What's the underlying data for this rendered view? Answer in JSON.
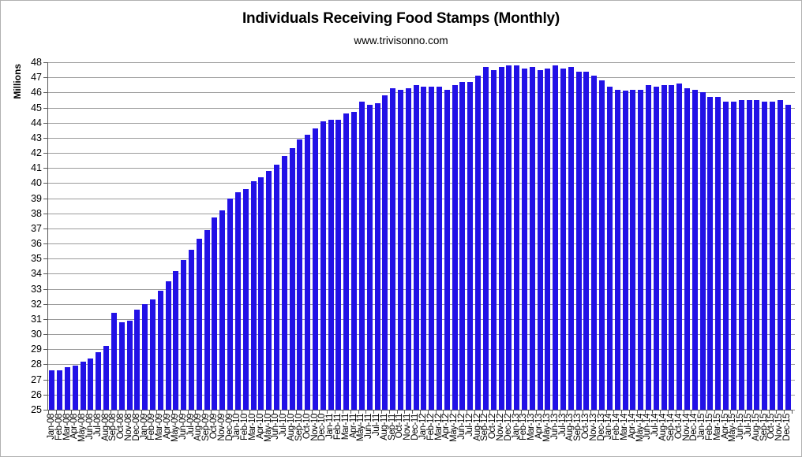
{
  "title": "Individuals Receiving Food Stamps (Monthly)",
  "subtitle": "www.trivisonno.com",
  "chart_data": {
    "type": "bar",
    "title": "Individuals Receiving Food Stamps (Monthly)",
    "subtitle": "www.trivisonno.com",
    "xlabel": "",
    "ylabel": "Millions",
    "ylim": [
      25,
      48
    ],
    "ytick_step": 1,
    "grid": true,
    "legend": false,
    "xtick_rotation": -90,
    "bar_color": "#2211e6",
    "gridline_color": "#9b9b9b",
    "axis_color": "#595959",
    "text_color": "#000000",
    "background_color": "#ffffff",
    "categories": [
      "Jan-08",
      "Feb-08",
      "Mar-08",
      "Apr-08",
      "May-08",
      "Jun-08",
      "Jul-08",
      "Aug-08",
      "Sep-08",
      "Oct-08",
      "Nov-08",
      "Dec-08",
      "Jan-09",
      "Feb-09",
      "Mar-09",
      "Apr-09",
      "May-09",
      "Jun-09",
      "Jul-09",
      "Aug-09",
      "Sep-09",
      "Oct-09",
      "Nov-09",
      "Dec-09",
      "Jan-10",
      "Feb-10",
      "Mar-10",
      "Apr-10",
      "May-10",
      "Jun-10",
      "Jul-10",
      "Aug-10",
      "Sep-10",
      "Oct-10",
      "Nov-10",
      "Dec-10",
      "Jan-11",
      "Feb-11",
      "Mar-11",
      "Apr-11",
      "May-11",
      "Jun-11",
      "Jul-11",
      "Aug-11",
      "Sep-11",
      "Oct-11",
      "Nov-11",
      "Dec-11",
      "Jan-12",
      "Feb-12",
      "Mar-12",
      "Apr-12",
      "May-12",
      "Jun-12",
      "Jul-12",
      "Aug-12",
      "Sep-12",
      "Oct-12",
      "Nov-12",
      "Dec-12",
      "Jan-13",
      "Feb-13",
      "Mar-13",
      "Apr-13",
      "May-13",
      "Jun-13",
      "Jul-13",
      "Aug-13",
      "Sep-13",
      "Oct-13",
      "Nov-13",
      "Dec-13",
      "Jan-14",
      "Feb-14",
      "Mar-14",
      "Apr-14",
      "May-14",
      "Jun-14",
      "Jul-14",
      "Aug-14",
      "Sep-14",
      "Oct-14",
      "Nov-14",
      "Dec-14",
      "Jan-15",
      "Feb-15",
      "Mar-15",
      "Apr-15",
      "May-15",
      "Jun-15",
      "Jul-15",
      "Aug-15",
      "Sep-15",
      "Oct-15",
      "Nov-15",
      "Dec-15"
    ],
    "values": [
      27.6,
      27.6,
      27.8,
      27.9,
      28.2,
      28.4,
      28.8,
      29.2,
      31.4,
      30.8,
      30.9,
      31.6,
      32.0,
      32.3,
      32.9,
      33.5,
      34.2,
      34.9,
      35.6,
      36.3,
      36.9,
      37.7,
      38.2,
      39.0,
      39.4,
      39.6,
      40.1,
      40.4,
      40.8,
      41.2,
      41.8,
      42.3,
      42.9,
      43.2,
      43.6,
      44.1,
      44.2,
      44.2,
      44.6,
      44.7,
      45.4,
      45.2,
      45.3,
      45.8,
      46.3,
      46.2,
      46.3,
      46.5,
      46.4,
      46.4,
      46.4,
      46.2,
      46.5,
      46.7,
      46.7,
      47.1,
      47.7,
      47.5,
      47.7,
      47.8,
      47.8,
      47.6,
      47.7,
      47.5,
      47.6,
      47.8,
      47.6,
      47.7,
      47.4,
      47.4,
      47.1,
      46.8,
      46.4,
      46.2,
      46.1,
      46.2,
      46.2,
      46.5,
      46.4,
      46.5,
      46.5,
      46.6,
      46.3,
      46.2,
      46.0,
      45.7,
      45.7,
      45.4,
      45.4,
      45.5,
      45.5,
      45.5,
      45.4,
      45.4,
      45.5,
      45.2
    ]
  }
}
